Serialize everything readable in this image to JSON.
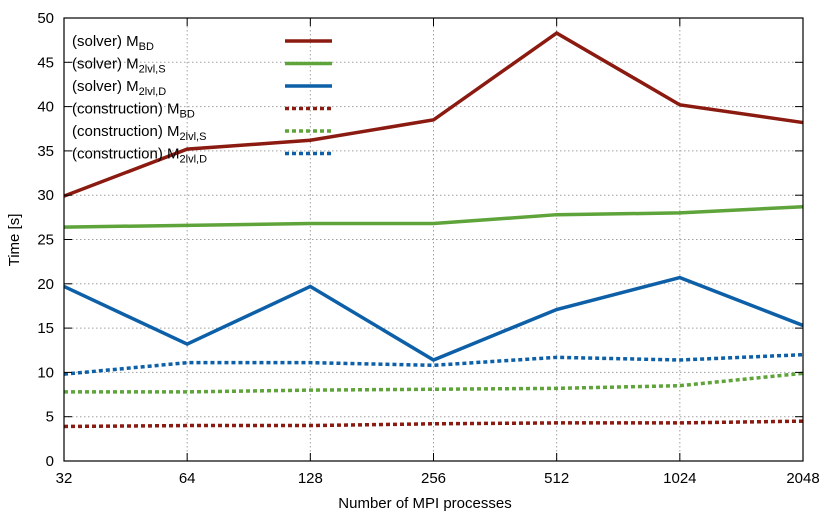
{
  "chart_data": {
    "type": "line",
    "xlabel": "Number of MPI processes",
    "ylabel": "Time [s]",
    "categories": [
      "32",
      "64",
      "128",
      "256",
      "512",
      "1024",
      "2048"
    ],
    "ylim": [
      0,
      50
    ],
    "yticks": [
      "0",
      "5",
      "10",
      "15",
      "20",
      "25",
      "30",
      "35",
      "40",
      "45",
      "50"
    ],
    "grid": true,
    "legend_position": "top-left",
    "series": [
      {
        "base": "(solver) M",
        "sub": "BD",
        "color": "#8b1a10",
        "dash": "solid",
        "values": [
          29.9,
          35.2,
          36.2,
          38.5,
          48.3,
          40.2,
          38.2
        ]
      },
      {
        "base": "(solver) M",
        "sub": "2lvl,S",
        "color": "#5ea43a",
        "dash": "solid",
        "values": [
          26.4,
          26.6,
          26.8,
          26.8,
          27.8,
          28.0,
          28.7
        ]
      },
      {
        "base": "(solver) M",
        "sub": "2lvl,D",
        "color": "#0d60a8",
        "dash": "solid",
        "values": [
          19.7,
          13.2,
          19.7,
          11.4,
          17.1,
          20.7,
          15.3
        ]
      },
      {
        "base": "(construction) M",
        "sub": "BD",
        "color": "#8b1a10",
        "dash": "dashed",
        "values": [
          3.9,
          4.0,
          4.0,
          4.2,
          4.3,
          4.3,
          4.5
        ]
      },
      {
        "base": "(construction) M",
        "sub": "2lvl,S",
        "color": "#5ea43a",
        "dash": "dashed",
        "values": [
          7.8,
          7.8,
          8.0,
          8.1,
          8.2,
          8.5,
          9.9
        ]
      },
      {
        "base": "(construction) M",
        "sub": "2lvl,D",
        "color": "#0d60a8",
        "dash": "dashed",
        "values": [
          9.8,
          11.1,
          11.1,
          10.8,
          11.7,
          11.4,
          12.0
        ]
      }
    ]
  }
}
